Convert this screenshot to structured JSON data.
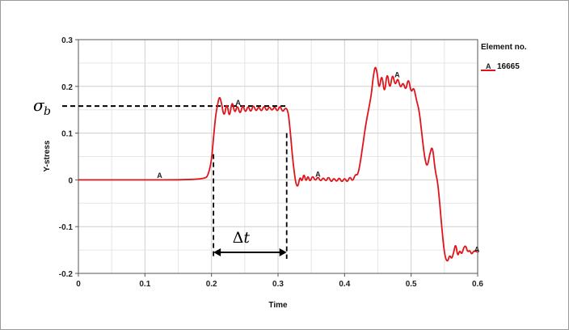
{
  "chart_data": {
    "type": "line",
    "title": "",
    "xlabel": "Time",
    "ylabel": "Y-stress",
    "xlim": [
      0,
      0.6
    ],
    "ylim": [
      -0.2,
      0.3
    ],
    "x_ticks": [
      0,
      0.1,
      0.2,
      0.3,
      0.4,
      0.5,
      0.6
    ],
    "x_tick_labels": [
      "0",
      "0.1",
      "0.2",
      "0.3",
      "0.4",
      "0.5",
      "0.6"
    ],
    "y_ticks": [
      -0.2,
      -0.1,
      0,
      0.1,
      0.2,
      0.3
    ],
    "y_tick_labels": [
      "-0.2",
      "-0.1",
      "0",
      "0.1",
      "0.2",
      "0.3"
    ],
    "grid": true,
    "legend": {
      "title": "Element no.",
      "position": "top-right",
      "entries": [
        {
          "marker": "A",
          "label": "16665",
          "color": "#e0141b"
        }
      ]
    },
    "series": [
      {
        "name": "16665",
        "marker": "A",
        "color": "#e0141b",
        "x": [
          0,
          0.05,
          0.1,
          0.15,
          0.19,
          0.195,
          0.2,
          0.203,
          0.206,
          0.209,
          0.212,
          0.215,
          0.219,
          0.223,
          0.227,
          0.231,
          0.235,
          0.239,
          0.243,
          0.247,
          0.251,
          0.255,
          0.259,
          0.263,
          0.267,
          0.271,
          0.275,
          0.279,
          0.283,
          0.287,
          0.291,
          0.295,
          0.299,
          0.303,
          0.307,
          0.311,
          0.315,
          0.318,
          0.321,
          0.324,
          0.327,
          0.33,
          0.333,
          0.336,
          0.339,
          0.342,
          0.345,
          0.348,
          0.352,
          0.356,
          0.36,
          0.364,
          0.368,
          0.372,
          0.376,
          0.38,
          0.384,
          0.388,
          0.392,
          0.396,
          0.4,
          0.404,
          0.408,
          0.412,
          0.416,
          0.42,
          0.424,
          0.428,
          0.432,
          0.436,
          0.44,
          0.443,
          0.446,
          0.449,
          0.452,
          0.456,
          0.46,
          0.464,
          0.468,
          0.472,
          0.476,
          0.48,
          0.484,
          0.488,
          0.492,
          0.496,
          0.5,
          0.504,
          0.508,
          0.512,
          0.516,
          0.52,
          0.524,
          0.528,
          0.532,
          0.536,
          0.54,
          0.543,
          0.546,
          0.549,
          0.552,
          0.555,
          0.558,
          0.561,
          0.564,
          0.567,
          0.57,
          0.573,
          0.576,
          0.579,
          0.582,
          0.585,
          0.588,
          0.591,
          0.594,
          0.597,
          0.6
        ],
        "y": [
          0,
          0,
          0,
          0,
          0.002,
          0.01,
          0.04,
          0.09,
          0.135,
          0.16,
          0.18,
          0.165,
          0.132,
          0.168,
          0.13,
          0.172,
          0.14,
          0.162,
          0.138,
          0.163,
          0.142,
          0.16,
          0.143,
          0.162,
          0.145,
          0.158,
          0.145,
          0.16,
          0.146,
          0.158,
          0.147,
          0.158,
          0.145,
          0.16,
          0.144,
          0.155,
          0.148,
          0.11,
          0.06,
          0.02,
          -0.01,
          -0.015,
          0.008,
          -0.005,
          0.015,
          -0.005,
          0.01,
          -0.005,
          0.01,
          -0.003,
          0.008,
          -0.004,
          0.006,
          -0.004,
          0.008,
          -0.006,
          0.005,
          -0.005,
          0.006,
          -0.006,
          0.005,
          -0.006,
          0.008,
          -0.004,
          0.012,
          0.01,
          0.04,
          0.08,
          0.12,
          0.15,
          0.18,
          0.22,
          0.245,
          0.23,
          0.19,
          0.23,
          0.18,
          0.235,
          0.19,
          0.23,
          0.2,
          0.22,
          0.195,
          0.21,
          0.19,
          0.22,
          0.185,
          0.2,
          0.17,
          0.15,
          0.1,
          0.05,
          0.025,
          0.055,
          0.075,
          0.02,
          -0.005,
          -0.05,
          -0.1,
          -0.145,
          -0.17,
          -0.175,
          -0.16,
          -0.17,
          -0.155,
          -0.135,
          -0.165,
          -0.15,
          -0.16,
          -0.145,
          -0.14,
          -0.155,
          -0.15,
          -0.16,
          -0.152,
          -0.152,
          -0.155
        ]
      }
    ],
    "point_markers": [
      {
        "label": "A",
        "x": 0.122,
        "y": 0.002
      },
      {
        "label": "A",
        "x": 0.24,
        "y": 0.158
      },
      {
        "label": "A",
        "x": 0.36,
        "y": 0.005
      },
      {
        "label": "A",
        "x": 0.479,
        "y": 0.218
      },
      {
        "label": "A",
        "x": 0.599,
        "y": -0.156
      }
    ],
    "annotations": {
      "sigma_b": {
        "symbol": "σ",
        "subscript": "b",
        "y": 0.158,
        "x_end": 0.313
      },
      "delta_t": {
        "label_delta": "Δ",
        "label_t": "t",
        "x_start": 0.203,
        "x_end": 0.313,
        "y": -0.155
      }
    }
  }
}
